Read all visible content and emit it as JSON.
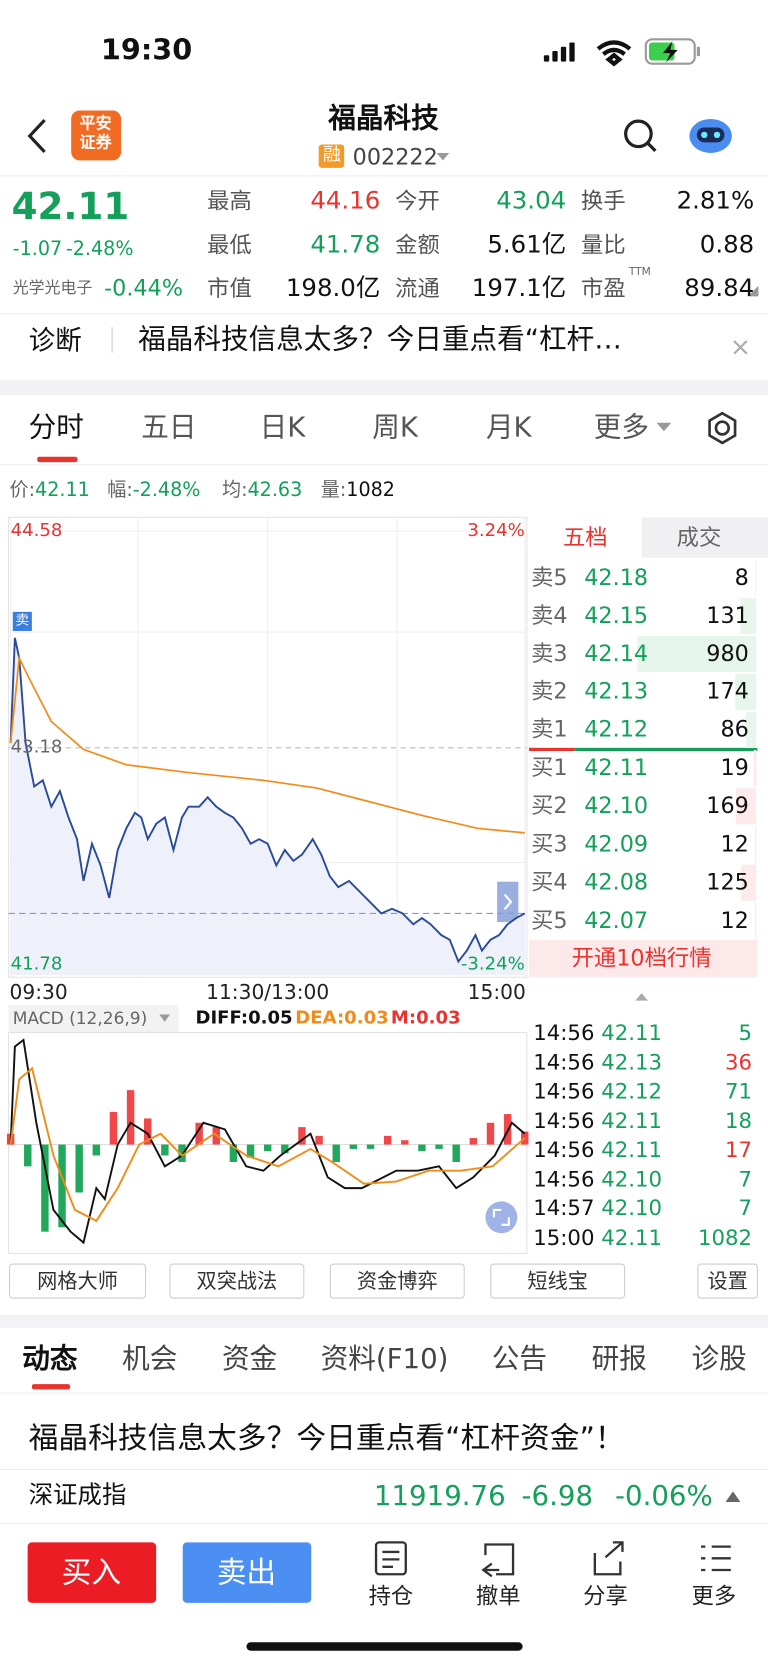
{
  "status_bar": {
    "time": "19:30"
  },
  "header": {
    "broker_logo": [
      "平安",
      "证券"
    ],
    "title": "福晶科技",
    "badge": "融",
    "code": "002222"
  },
  "quote": {
    "price": "42.11",
    "change": "-1.07",
    "change_pct": "-2.48%",
    "sector": "光学光电子",
    "sector_pct": "-0.44%",
    "stats": [
      {
        "label": "最高",
        "value": "44.16",
        "color": "#e8332e"
      },
      {
        "label": "今开",
        "value": "43.04",
        "color": "#14a05a"
      },
      {
        "label": "换手",
        "value": "2.81%",
        "color": "#111111"
      },
      {
        "label": "最低",
        "value": "41.78",
        "color": "#14a05a"
      },
      {
        "label": "金额",
        "value": "5.61亿",
        "color": "#111111"
      },
      {
        "label": "量比",
        "value": "0.88",
        "color": "#111111"
      },
      {
        "label": "市值",
        "value": "198.0亿",
        "color": "#111111"
      },
      {
        "label": "流通",
        "value": "197.1亿",
        "color": "#111111"
      },
      {
        "label": "市盈",
        "value": "89.84",
        "color": "#111111"
      }
    ],
    "pe_tag": "TTM"
  },
  "diagnosis": {
    "label": "诊断",
    "text": "福晶科技信息太多？今日重点看“杠杆…"
  },
  "chart_tabs": [
    "分时",
    "五日",
    "日K",
    "周K",
    "月K",
    "更多"
  ],
  "info_bar": [
    {
      "label": "价:",
      "value": "42.11",
      "color": "#14a05a"
    },
    {
      "label": "幅:",
      "value": "-2.48%",
      "color": "#14a05a"
    },
    {
      "label": "均:",
      "value": "42.63",
      "color": "#14a05a"
    },
    {
      "label": "量:",
      "value": "1082",
      "color": "#111111"
    }
  ],
  "chart_data": [
    {
      "type": "line",
      "marker": "卖",
      "xlim": [
        0,
        240
      ],
      "xticks": [
        {
          "value": 0,
          "label": "09:30"
        },
        {
          "value": 120,
          "label": "11:30/13:00"
        },
        {
          "value": 240,
          "label": "15:00"
        }
      ],
      "ylim": [
        41.78,
        44.58
      ],
      "yticks": [
        44.58,
        43.18,
        41.78
      ],
      "y2lim": [
        -3.24,
        3.24
      ],
      "y2ticks": [
        {
          "value": 3.24,
          "label": "3.24%"
        },
        {
          "value": -3.24,
          "label": "-3.24%"
        }
      ],
      "series": [
        {
          "color": "#2a4b9b",
          "x": [
            0,
            2,
            4,
            7,
            11,
            15,
            19,
            23,
            27,
            31,
            34,
            38,
            42,
            46,
            50,
            54,
            58,
            61,
            64,
            68,
            72,
            76,
            80,
            83,
            88,
            92,
            96,
            100,
            104,
            108,
            112,
            116,
            120,
            124,
            128,
            132,
            136,
            141,
            145,
            149,
            153,
            158,
            163,
            168,
            173,
            178,
            183,
            188,
            192,
            196,
            201,
            205,
            209,
            213,
            217,
            220,
            224,
            228,
            232,
            236,
            240
          ],
          "values": [
            43.21,
            43.89,
            43.76,
            43.21,
            42.93,
            42.97,
            42.8,
            42.9,
            42.73,
            42.59,
            42.32,
            42.56,
            42.42,
            42.21,
            42.52,
            42.66,
            42.76,
            42.73,
            42.59,
            42.69,
            42.73,
            42.52,
            42.73,
            42.8,
            42.8,
            42.86,
            42.8,
            42.76,
            42.73,
            42.66,
            42.56,
            42.59,
            42.56,
            42.42,
            42.52,
            42.45,
            42.49,
            42.59,
            42.49,
            42.35,
            42.28,
            42.32,
            42.25,
            42.18,
            42.11,
            42.14,
            42.11,
            42.04,
            42.08,
            42.04,
            41.97,
            41.94,
            41.8,
            41.87,
            41.97,
            41.87,
            41.94,
            41.97,
            42.04,
            42.08,
            42.11
          ]
        },
        {
          "color": "#f08c1a",
          "x": [
            0,
            4,
            9,
            19,
            34,
            54,
            83,
            118,
            143,
            168,
            193,
            218,
            240
          ],
          "values": [
            43.21,
            43.76,
            43.62,
            43.35,
            43.17,
            43.07,
            43.02,
            42.97,
            42.92,
            42.83,
            42.74,
            42.66,
            42.63
          ]
        }
      ]
    },
    {
      "type": "macd",
      "label": "MACD (12,26,9)",
      "indicators": [
        {
          "text": "DIFF:0.05",
          "color": "#111111"
        },
        {
          "text": "DEA:0.03",
          "color": "#f08c1a"
        },
        {
          "text": "M:0.03",
          "color": "#e8332e"
        }
      ],
      "xlim": [
        0,
        240
      ],
      "ylim": [
        -0.5,
        0.5
      ],
      "histogram": {
        "up_color": "#f0484a",
        "down_color": "#22a85c",
        "x": [
          0,
          8,
          16,
          24,
          32,
          40,
          48,
          56,
          64,
          72,
          80,
          88,
          96,
          104,
          112,
          120,
          128,
          136,
          144,
          152,
          160,
          168,
          176,
          184,
          192,
          200,
          208,
          216,
          224,
          232,
          240
        ],
        "values": [
          0.05,
          -0.1,
          -0.4,
          -0.38,
          -0.22,
          -0.05,
          0.15,
          0.25,
          0.12,
          -0.05,
          -0.08,
          0.1,
          0.08,
          -0.08,
          -0.06,
          -0.03,
          -0.04,
          0.08,
          0.04,
          -0.08,
          -0.02,
          -0.02,
          0.04,
          0.02,
          -0.03,
          -0.02,
          -0.08,
          0.03,
          0.1,
          0.14,
          0.06
        ]
      },
      "series": [
        {
          "color": "#111111",
          "x": [
            0,
            2,
            6,
            12,
            20,
            28,
            34,
            40,
            44,
            50,
            56,
            64,
            72,
            80,
            90,
            100,
            110,
            118,
            126,
            140,
            148,
            156,
            164,
            174,
            180,
            190,
            200,
            208,
            216,
            226,
            234,
            240
          ],
          "values": [
            0,
            0.45,
            0.48,
            0.1,
            -0.3,
            -0.4,
            -0.45,
            -0.2,
            -0.25,
            0,
            0.1,
            0.05,
            -0.1,
            -0.05,
            0.1,
            0.07,
            -0.1,
            -0.12,
            -0.05,
            0.05,
            -0.15,
            -0.2,
            -0.2,
            -0.15,
            -0.12,
            -0.12,
            -0.1,
            -0.2,
            -0.15,
            -0.05,
            0.1,
            0.05
          ]
        },
        {
          "color": "#f08c1a",
          "x": [
            0,
            4,
            10,
            20,
            30,
            40,
            50,
            60,
            70,
            80,
            95,
            110,
            125,
            140,
            150,
            165,
            180,
            195,
            210,
            225,
            240
          ],
          "values": [
            0,
            0.3,
            0.35,
            -0.05,
            -0.3,
            -0.35,
            -0.2,
            0,
            0.05,
            -0.05,
            0.05,
            -0.05,
            -0.1,
            -0.02,
            -0.08,
            -0.18,
            -0.17,
            -0.12,
            -0.12,
            -0.1,
            0.03
          ]
        }
      ]
    }
  ],
  "order_book": {
    "tabs": [
      "五档",
      "成交"
    ],
    "asks": [
      {
        "label": "卖5",
        "price": "42.18",
        "volume": 8
      },
      {
        "label": "卖4",
        "price": "42.15",
        "volume": 131
      },
      {
        "label": "卖3",
        "price": "42.14",
        "volume": 980
      },
      {
        "label": "卖2",
        "price": "42.13",
        "volume": 174
      },
      {
        "label": "卖1",
        "price": "42.12",
        "volume": 86
      }
    ],
    "bids": [
      {
        "label": "买1",
        "price": "42.11",
        "volume": 19
      },
      {
        "label": "买2",
        "price": "42.10",
        "volume": 169
      },
      {
        "label": "买3",
        "price": "42.09",
        "volume": 12
      },
      {
        "label": "买4",
        "price": "42.08",
        "volume": 125
      },
      {
        "label": "买5",
        "price": "42.07",
        "volume": 12
      }
    ],
    "upgrade": "开通10档行情"
  },
  "trades": [
    {
      "time": "14:56",
      "price": "42.11",
      "volume": 5,
      "color": "#14a05a"
    },
    {
      "time": "14:56",
      "price": "42.13",
      "volume": 36,
      "color": "#e8332e"
    },
    {
      "time": "14:56",
      "price": "42.12",
      "volume": 71,
      "color": "#14a05a"
    },
    {
      "time": "14:56",
      "price": "42.11",
      "volume": 18,
      "color": "#14a05a"
    },
    {
      "time": "14:56",
      "price": "42.11",
      "volume": 17,
      "color": "#e8332e"
    },
    {
      "time": "14:56",
      "price": "42.10",
      "volume": 7,
      "color": "#14a05a"
    },
    {
      "time": "14:57",
      "price": "42.10",
      "volume": 7,
      "color": "#14a05a"
    },
    {
      "time": "15:00",
      "price": "42.11",
      "volume": 1082,
      "color": "#14a05a"
    }
  ],
  "tools": [
    "网格大师",
    "双突战法",
    "资金博弈",
    "短线宝",
    "设置"
  ],
  "content_tabs": [
    "动态",
    "机会",
    "资金",
    "资料(F10)",
    "公告",
    "研报",
    "诊股"
  ],
  "news": "福晶科技信息太多？今日重点看“杠杆资金”！",
  "index": {
    "name": "深证成指",
    "value": "11919.76",
    "change": "-6.98",
    "pct": "-0.06%"
  },
  "actions": {
    "buy": "买入",
    "sell": "卖出",
    "items": [
      "持仓",
      "撤单",
      "分享",
      "更多"
    ]
  }
}
